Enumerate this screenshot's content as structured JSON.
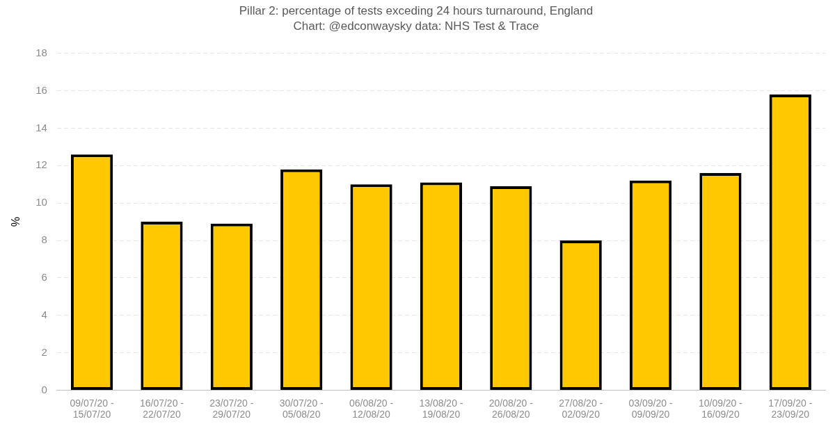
{
  "chart_data": {
    "type": "bar",
    "title": "Pillar 2: percentage of tests exceding 24 hours turnaround, England",
    "subtitle": "Chart: @edconwaysky data: NHS Test & Trace",
    "y_label": "%",
    "categories": [
      "09/07/20 - 15/07/20",
      "16/07/20 - 22/07/20",
      "23/07/20 - 29/07/20",
      "30/07/20 - 05/08/20",
      "06/08/20 - 12/08/20",
      "13/08/20 - 19/08/20",
      "20/08/20 - 26/08/20",
      "27/08/20 - 02/09/20",
      "03/09/20 - 09/09/20",
      "10/09/20 - 16/09/20",
      "17/09/20 - 23/09/20"
    ],
    "values": [
      12.6,
      9.0,
      8.9,
      11.8,
      11.0,
      11.1,
      10.9,
      8.0,
      11.2,
      11.6,
      15.8
    ],
    "color": "#ffc800",
    "ylim": [
      0,
      18
    ],
    "yticks": [
      0,
      2,
      4,
      6,
      8,
      10,
      12,
      14,
      16,
      18
    ],
    "grid": true
  }
}
